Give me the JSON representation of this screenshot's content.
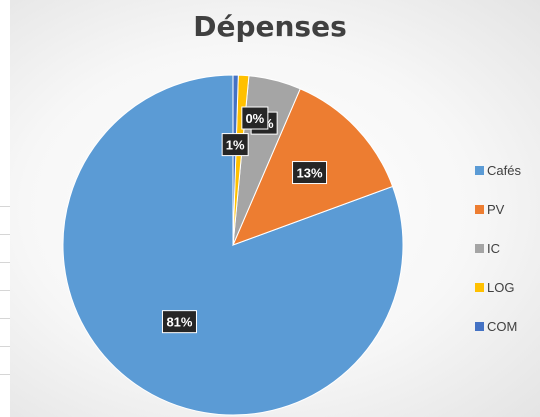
{
  "chart_data": {
    "type": "pie",
    "title": "Dépenses",
    "categories": [
      "Cafés",
      "PV",
      "IC",
      "LOG",
      "COM"
    ],
    "values": [
      81,
      13,
      5,
      1,
      0.5
    ],
    "data_labels": [
      "81%",
      "13%",
      "5%",
      "1%",
      "0%"
    ],
    "colors": [
      "#5b9bd5",
      "#ed7d31",
      "#a5a5a5",
      "#ffc000",
      "#4472c4"
    ],
    "legend_position": "right"
  }
}
